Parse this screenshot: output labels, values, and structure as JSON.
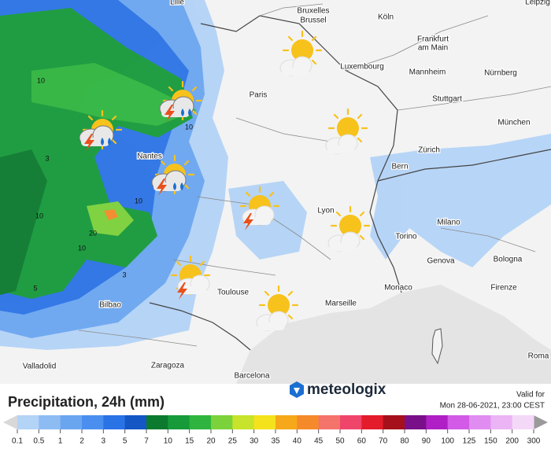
{
  "map": {
    "cities": [
      "Lille",
      "Leipzig",
      "Bruxelles",
      "Brussel",
      "Köln",
      "Frankfurt",
      "am Main",
      "Luxembourg",
      "Mannheim",
      "Nürnberg",
      "Paris",
      "Stuttgart",
      "München",
      "Zürich",
      "Bern",
      "Nantes",
      "Lyon",
      "Milano",
      "Torino",
      "Genova",
      "Bologna",
      "Monaco",
      "Firenze",
      "Toulouse",
      "Marseille",
      "Bilbao",
      "Valladolid",
      "Zaragoza",
      "Barcelona",
      "Roma"
    ],
    "contour_labels": [
      10,
      10,
      3,
      10,
      20,
      10,
      10,
      5,
      3
    ]
  },
  "legend": {
    "title": "Precipitation, 24h (mm)",
    "scale": [
      0.1,
      0.5,
      1,
      2,
      3,
      5,
      7,
      10,
      15,
      20,
      25,
      30,
      35,
      40,
      45,
      50,
      60,
      70,
      80,
      90,
      100,
      125,
      150,
      200,
      300
    ],
    "colors": [
      "#b3d3f7",
      "#8dbcf3",
      "#6aa6f0",
      "#4a8ff0",
      "#2a73e6",
      "#1456c4",
      "#0c7a2e",
      "#169a3a",
      "#2fb53f",
      "#7bd23a",
      "#c7e32c",
      "#f4e21c",
      "#f6a81a",
      "#f58a2a",
      "#f4736a",
      "#f0456a",
      "#e31b2a",
      "#a5101a",
      "#7a0f8a",
      "#b01fc5",
      "#d25ae6",
      "#e08cf0",
      "#ebb4f5",
      "#f4d8f8"
    ]
  },
  "brand": "meteologix",
  "valid": {
    "label": "Valid for",
    "time": "Mon 28-06-2021, 23:00 CEST"
  }
}
